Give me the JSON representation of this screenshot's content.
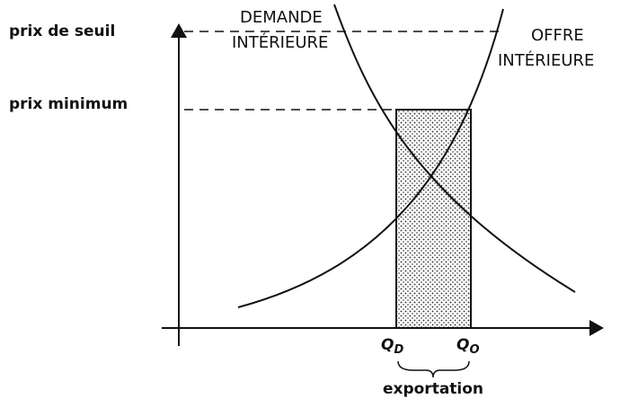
{
  "labels": {
    "threshold_price": "prix de seuil",
    "minimum_price": "prix minimum",
    "demand": [
      "DEMANDE",
      "INTÉRIEURE"
    ],
    "supply": [
      "OFFRE",
      "INTÉRIEURE"
    ],
    "qd": {
      "main": "Q",
      "sub": "D"
    },
    "qo": {
      "main": "Q",
      "sub": "O"
    },
    "export": "exportation"
  }
}
